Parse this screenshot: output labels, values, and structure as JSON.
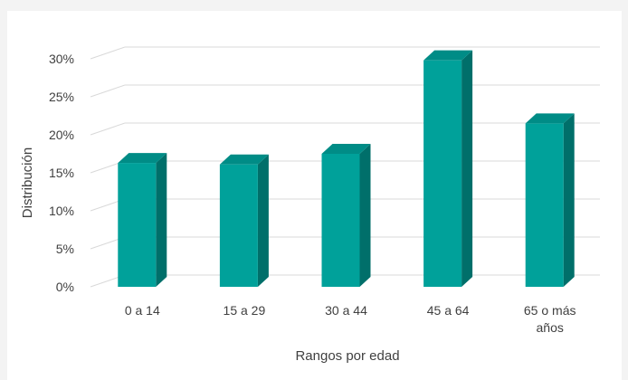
{
  "chart_data": {
    "type": "bar",
    "style": "3d-column",
    "title": "",
    "xlabel": "Rangos por edad",
    "ylabel": "Distribución",
    "categories": [
      [
        "0 a 14"
      ],
      [
        "15 a 29"
      ],
      [
        "30 a 44"
      ],
      [
        "45 a 64"
      ],
      [
        "65 o más",
        "años"
      ]
    ],
    "values": [
      16.3,
      16.1,
      17.5,
      29.8,
      21.5
    ],
    "ylim": [
      0,
      30
    ],
    "yticks": [
      "0%",
      "5%",
      "10%",
      "15%",
      "20%",
      "25%",
      "30%"
    ],
    "grid": true,
    "legend": "none",
    "colors": {
      "bar_front": "#00a19a",
      "bar_top": "#008c86",
      "bar_side": "#006f6a",
      "grid": "#d9d9d9",
      "text": "#404040"
    }
  }
}
